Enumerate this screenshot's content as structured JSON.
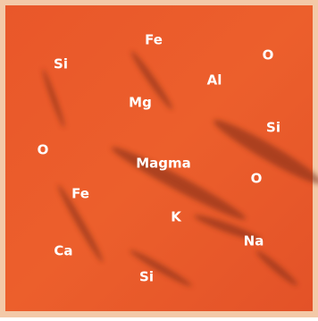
{
  "labels": [
    "Fe",
    "O",
    "Si",
    "Al",
    "Mg",
    "Si",
    "O",
    "Magma",
    "O",
    "Fe",
    "K",
    "Na",
    "Ca",
    "Si"
  ]
}
